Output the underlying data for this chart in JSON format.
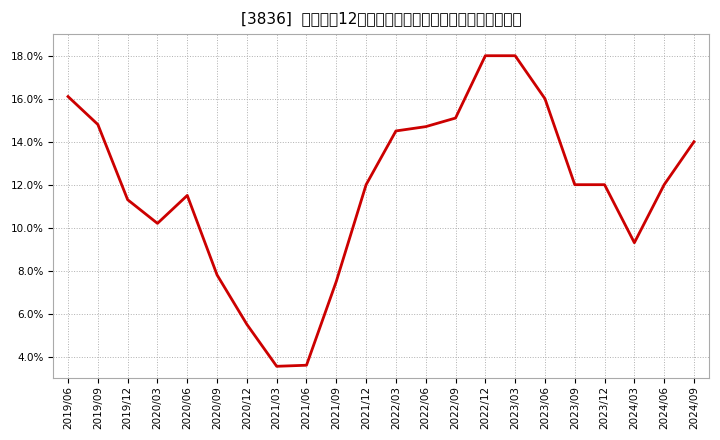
{
  "title": "[3836]  売上高の12か月移動合計の対前年同期増減率の推移",
  "line_color": "#cc0000",
  "background_color": "#ffffff",
  "plot_bg_color": "#ffffff",
  "grid_color": "#b0b0b0",
  "x_labels": [
    "2019/06",
    "2019/09",
    "2019/12",
    "2020/03",
    "2020/06",
    "2020/09",
    "2020/12",
    "2021/03",
    "2021/06",
    "2021/09",
    "2021/12",
    "2022/03",
    "2022/06",
    "2022/09",
    "2022/12",
    "2023/03",
    "2023/06",
    "2023/09",
    "2023/12",
    "2024/03",
    "2024/06",
    "2024/09"
  ],
  "y_values": [
    16.1,
    14.8,
    11.3,
    10.2,
    11.5,
    7.8,
    5.5,
    3.55,
    3.6,
    7.5,
    12.0,
    14.5,
    14.7,
    15.1,
    18.0,
    18.0,
    16.0,
    12.0,
    12.0,
    9.3,
    12.0,
    14.0
  ],
  "ylim": [
    3.0,
    19.0
  ],
  "yticks": [
    4.0,
    6.0,
    8.0,
    10.0,
    12.0,
    14.0,
    16.0,
    18.0
  ],
  "line_width": 2.0,
  "title_fontsize": 11,
  "tick_fontsize": 7.5
}
